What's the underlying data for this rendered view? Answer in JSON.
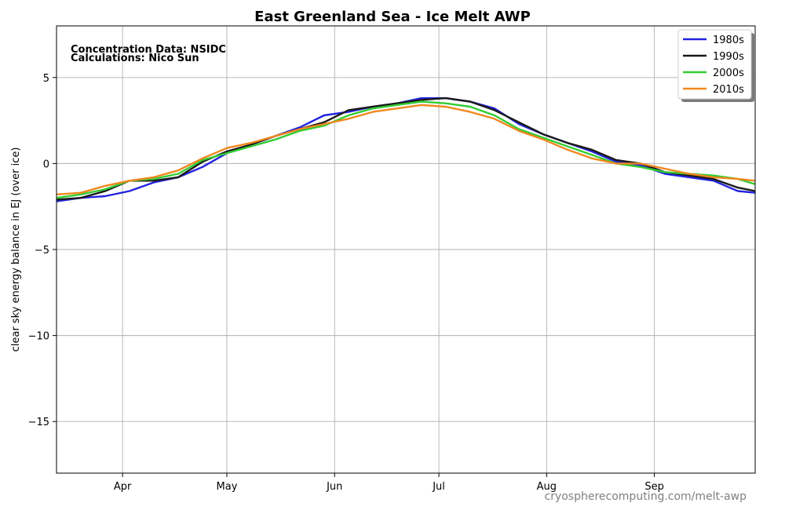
{
  "chart_data": {
    "type": "line",
    "title": "East Greenland Sea - Ice Melt AWP",
    "xlabel": "",
    "ylabel": "clear sky energy balance in EJ (over ice)",
    "ylim": [
      -18,
      8
    ],
    "xlim": [
      "Mar 13",
      "Sep 30"
    ],
    "x_ticks": [
      {
        "label": "Apr",
        "date": "Apr 1"
      },
      {
        "label": "May",
        "date": "May 1"
      },
      {
        "label": "Jun",
        "date": "Jun 1"
      },
      {
        "label": "Jul",
        "date": "Jul 1"
      },
      {
        "label": "Aug",
        "date": "Aug 1"
      },
      {
        "label": "Sep",
        "date": "Sep 1"
      }
    ],
    "y_ticks": [
      {
        "label": "5",
        "value": 5
      },
      {
        "label": "0",
        "value": 0
      },
      {
        "label": "−5",
        "value": -5
      },
      {
        "label": "−10",
        "value": -10
      },
      {
        "label": "−15",
        "value": -15
      }
    ],
    "grid": true,
    "legend_position": "top-right",
    "annotations": [
      "Concentration Data: NSIDC",
      "Calculations: Nico Sun"
    ],
    "credit": "cryospherecomputing.com/melt-awp",
    "x": [
      "Mar 13",
      "Mar 20",
      "Mar 27",
      "Apr 3",
      "Apr 10",
      "Apr 17",
      "Apr 24",
      "May 1",
      "May 8",
      "May 15",
      "May 22",
      "May 29",
      "Jun 5",
      "Jun 12",
      "Jun 19",
      "Jun 26",
      "Jul 3",
      "Jul 10",
      "Jul 17",
      "Jul 24",
      "Jul 31",
      "Aug 7",
      "Aug 14",
      "Aug 21",
      "Aug 28",
      "Sep 4",
      "Sep 11",
      "Sep 18",
      "Sep 25",
      "Sep 30"
    ],
    "series": [
      {
        "name": "1980s",
        "color": "#2323e0",
        "values": [
          -2.2,
          -2.0,
          -1.9,
          -1.6,
          -1.1,
          -0.8,
          -0.2,
          0.6,
          1.1,
          1.6,
          2.1,
          2.8,
          3.0,
          3.3,
          3.5,
          3.8,
          3.8,
          3.6,
          3.2,
          2.3,
          1.7,
          1.2,
          0.7,
          0.1,
          -0.1,
          -0.6,
          -0.8,
          -1.0,
          -1.6,
          -1.7
        ]
      },
      {
        "name": "1990s",
        "color": "#1a1a1a",
        "values": [
          -2.1,
          -2.0,
          -1.6,
          -1.0,
          -1.0,
          -0.8,
          0.1,
          0.7,
          1.1,
          1.6,
          2.0,
          2.4,
          3.1,
          3.3,
          3.5,
          3.7,
          3.8,
          3.6,
          3.1,
          2.4,
          1.7,
          1.2,
          0.8,
          0.2,
          0.0,
          -0.5,
          -0.7,
          -0.9,
          -1.4,
          -1.6
        ]
      },
      {
        "name": "2000s",
        "color": "#33cc33",
        "values": [
          -2.0,
          -1.8,
          -1.5,
          -1.0,
          -0.9,
          -0.6,
          0.2,
          0.6,
          1.0,
          1.4,
          1.9,
          2.2,
          2.8,
          3.2,
          3.4,
          3.6,
          3.5,
          3.3,
          2.8,
          2.0,
          1.5,
          1.0,
          0.5,
          0.0,
          -0.2,
          -0.5,
          -0.6,
          -0.7,
          -0.9,
          -1.2
        ]
      },
      {
        "name": "2010s",
        "color": "#f0871e",
        "values": [
          -1.8,
          -1.7,
          -1.3,
          -1.0,
          -0.8,
          -0.4,
          0.3,
          0.9,
          1.2,
          1.6,
          2.0,
          2.3,
          2.6,
          3.0,
          3.2,
          3.4,
          3.3,
          3.0,
          2.6,
          1.9,
          1.4,
          0.8,
          0.3,
          0.0,
          0.0,
          -0.3,
          -0.6,
          -0.8,
          -0.9,
          -1.0
        ]
      }
    ]
  }
}
